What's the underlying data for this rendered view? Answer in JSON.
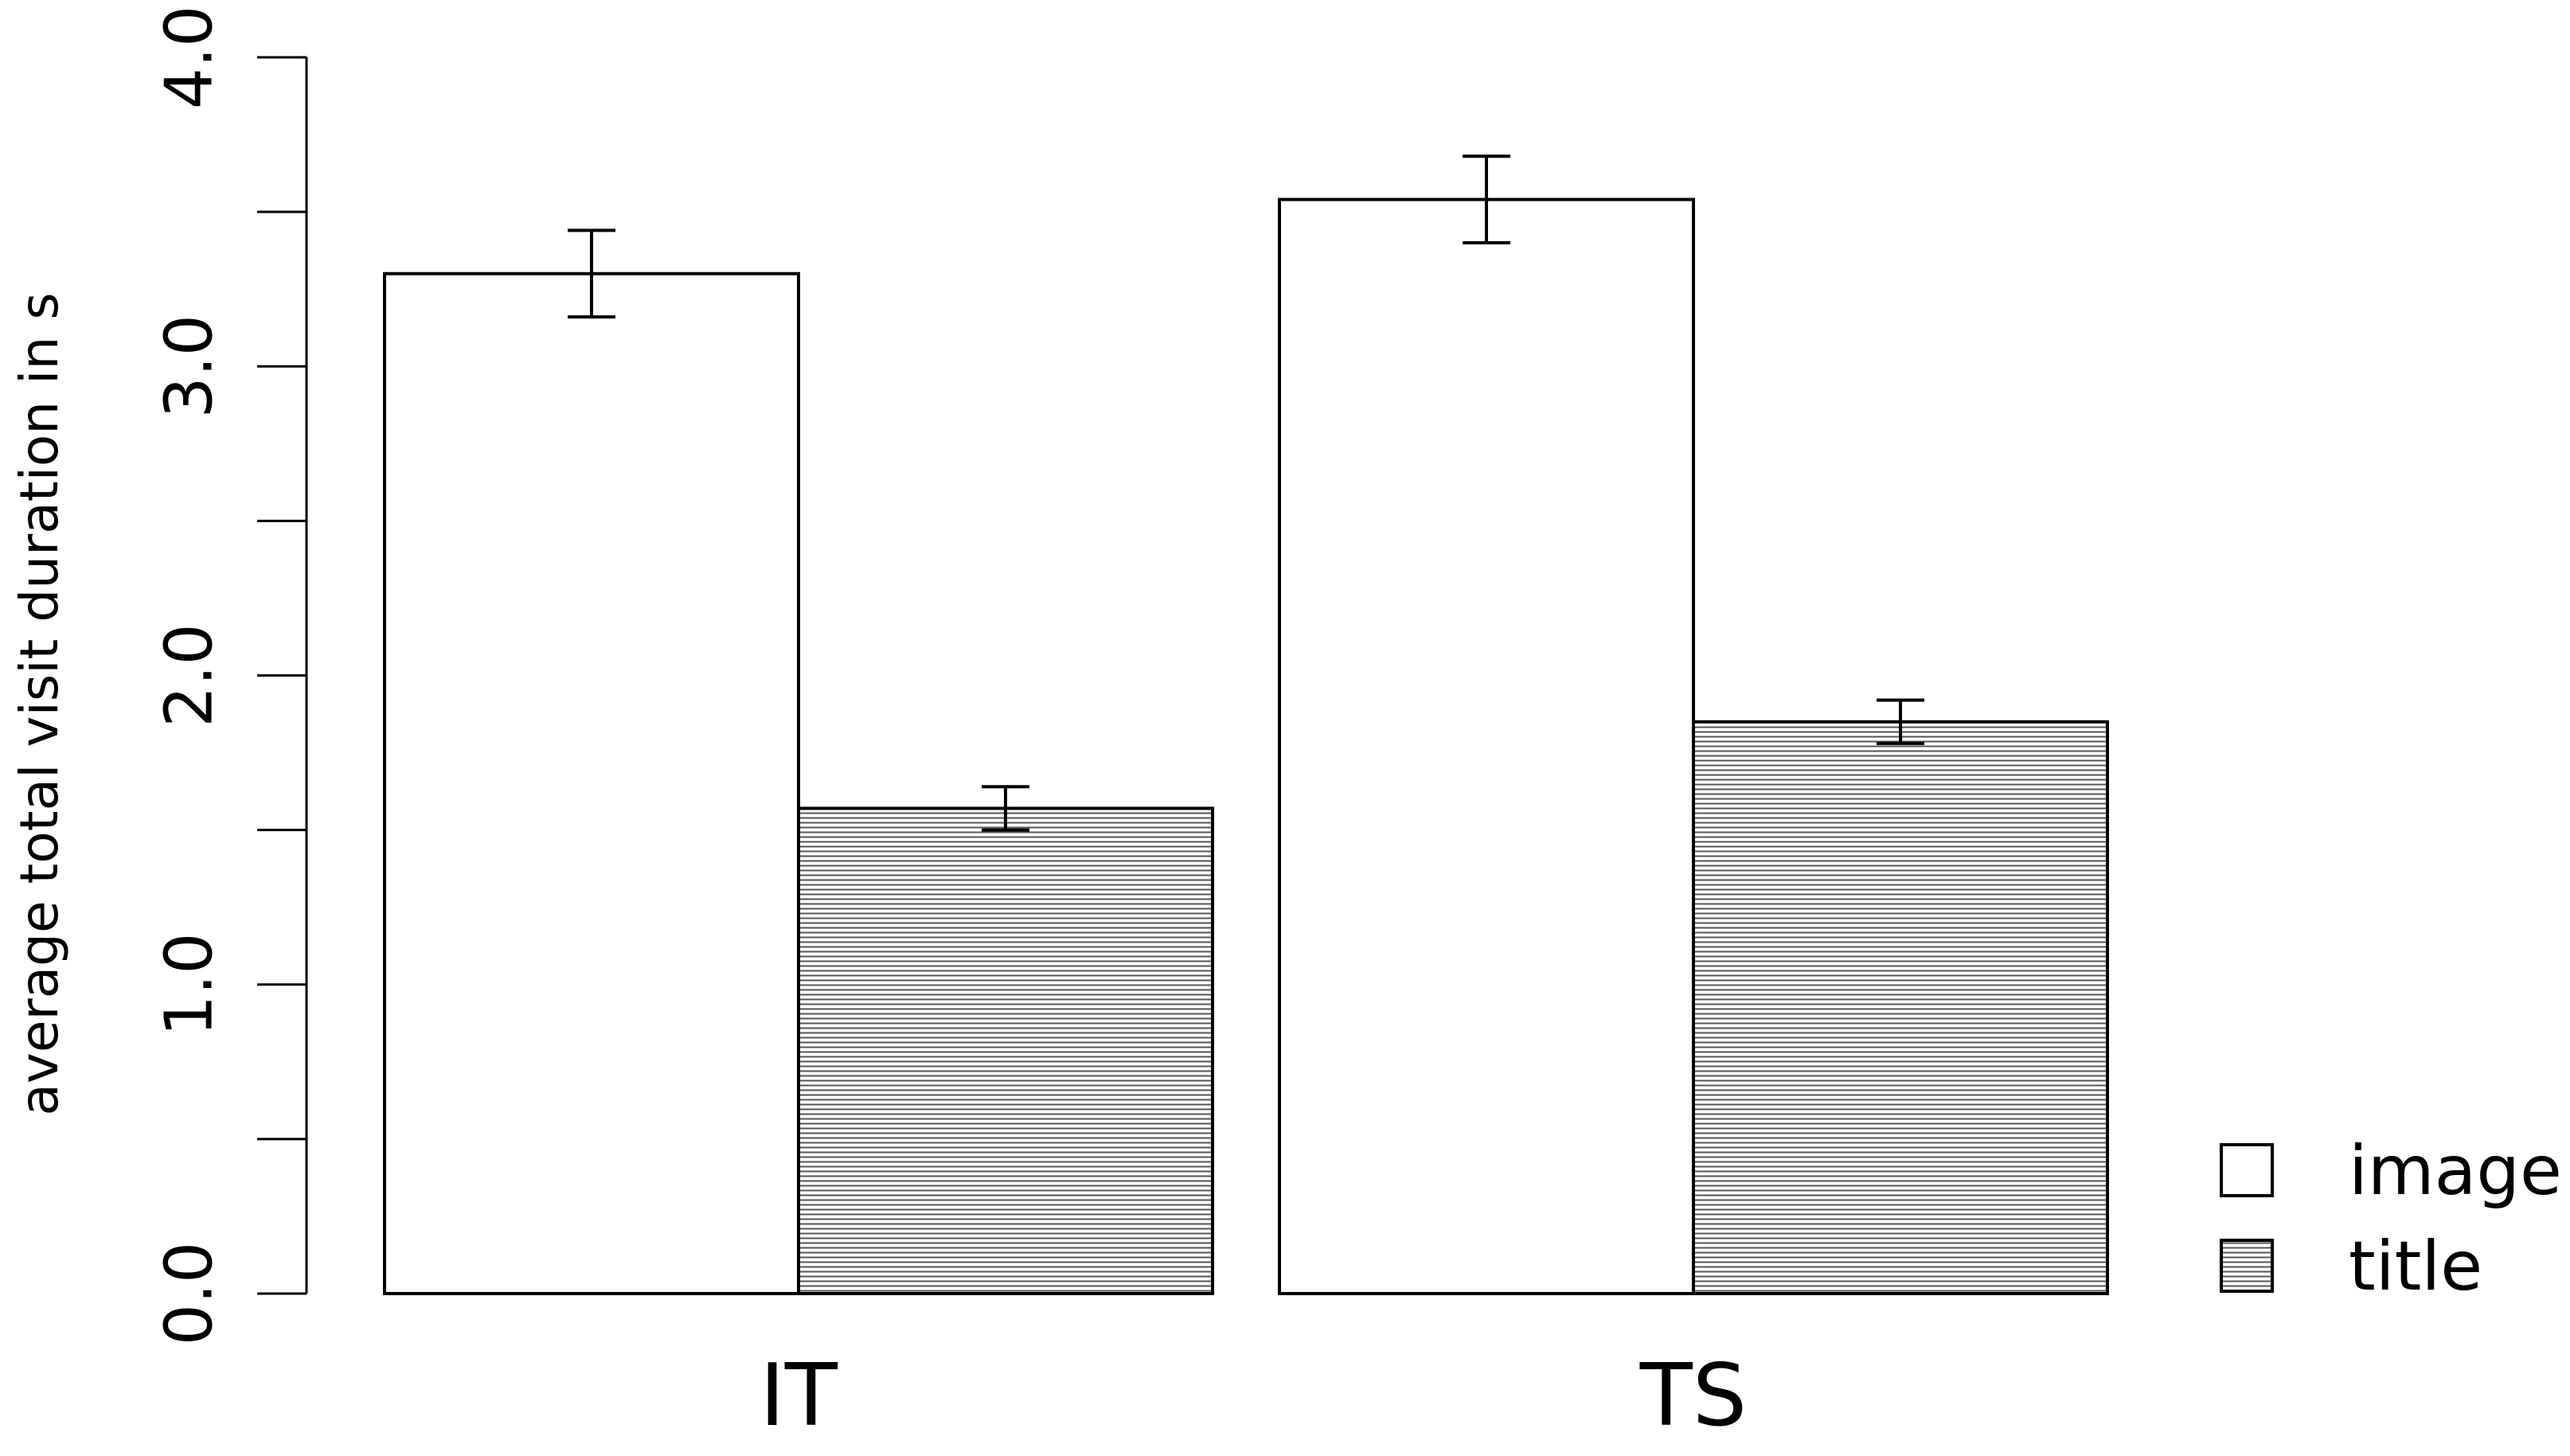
{
  "chart_data": {
    "type": "bar",
    "categories": [
      "IT",
      "TS"
    ],
    "series": [
      {
        "name": "image",
        "values": [
          3.3,
          3.54
        ],
        "error": [
          0.14,
          0.14
        ],
        "fill": "white"
      },
      {
        "name": "title",
        "values": [
          1.57,
          1.85
        ],
        "error": [
          0.07,
          0.07
        ],
        "fill": "horizontal-hatch"
      }
    ],
    "ylabel": "average total visit duration in s",
    "ylim": [
      0,
      4
    ],
    "yticks": [
      0,
      0.5,
      1,
      1.5,
      2,
      2.5,
      3,
      3.5,
      4
    ],
    "ytick_labels": [
      "0.0",
      "1.0",
      "2.0",
      "3.0",
      "4.0"
    ],
    "grid": false,
    "legend_position": "bottom-right",
    "colors": {
      "bar_outline": "#000000",
      "image_fill": "#ffffff",
      "title_fill": "#d9d9d9"
    }
  }
}
